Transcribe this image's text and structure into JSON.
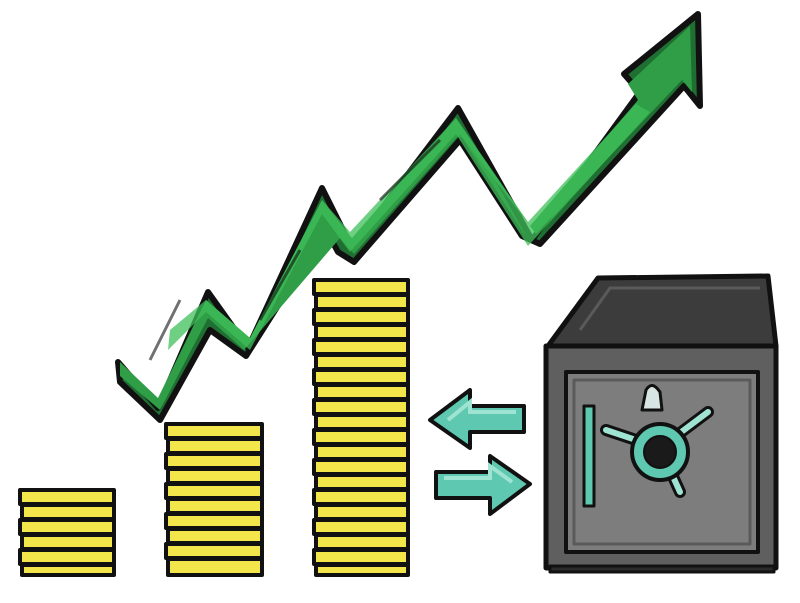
{
  "illustration": {
    "subject": "savings-growth-cartoon",
    "elements": [
      "growth-arrow",
      "coin-stack-small",
      "coin-stack-medium",
      "coin-stack-large",
      "arrow-left",
      "arrow-right",
      "safe"
    ],
    "colors": {
      "outline": "#111111",
      "arrow_green": "#2f9e46",
      "arrow_green_dark": "#1f6f32",
      "arrow_green_light": "#3fbf5a",
      "coin_yellow": "#f2e64a",
      "coin_shadow": "#b8a820",
      "safe_dark": "#3c3c3c",
      "safe_mid": "#5f5f5f",
      "safe_light": "#7d7d7d",
      "teal": "#5fc8b0",
      "teal_light": "#9fe3d3",
      "background": "#ffffff"
    }
  }
}
